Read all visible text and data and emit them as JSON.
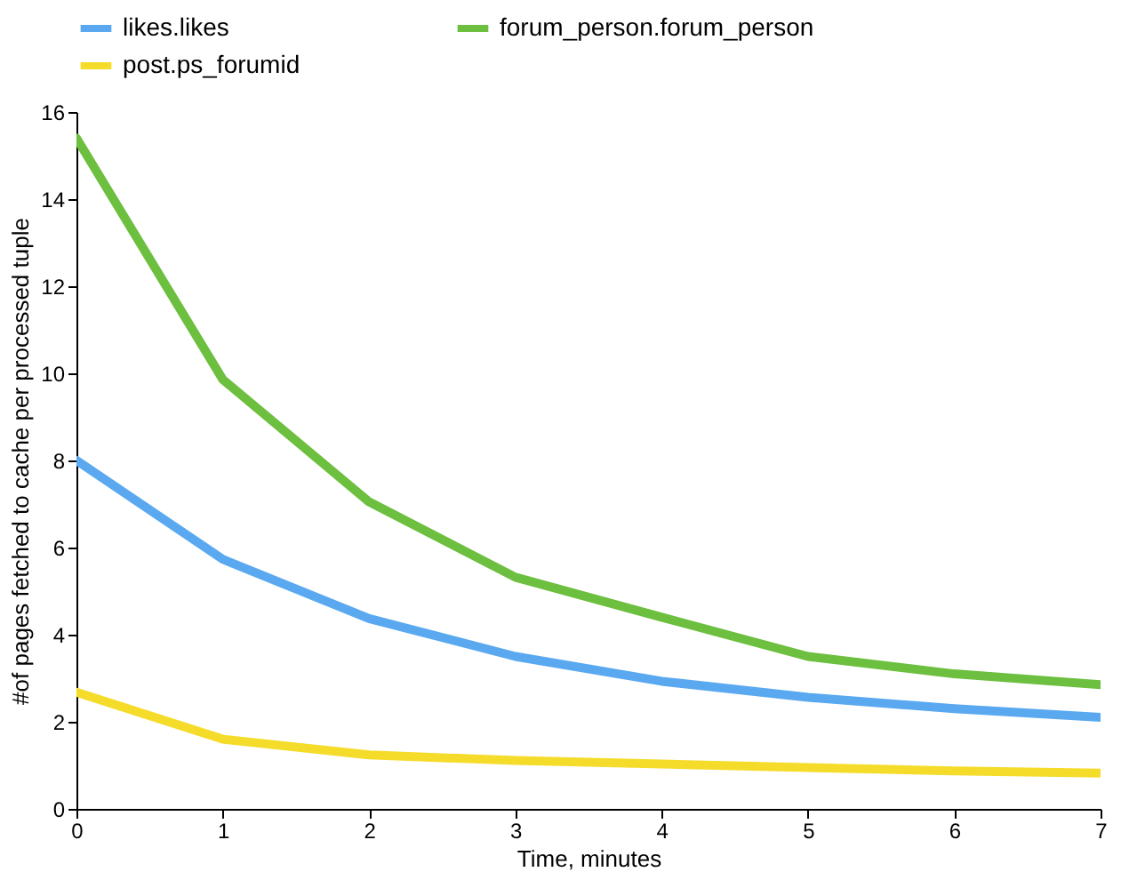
{
  "chart_data": {
    "type": "line",
    "xlabel": "Time, minutes",
    "ylabel": "#of pages fetched to cache per processed tuple",
    "x": [
      0,
      1,
      2,
      3,
      4,
      5,
      6,
      7
    ],
    "series": [
      {
        "name": "likes.likes",
        "color": "#5aa9f0",
        "values": [
          8.0,
          5.73,
          4.37,
          3.5,
          2.93,
          2.56,
          2.3,
          2.1
        ]
      },
      {
        "name": "forum_person.forum_person",
        "color": "#6cbf3f",
        "values": [
          15.4,
          9.86,
          7.05,
          5.32,
          4.4,
          3.5,
          3.1,
          2.85
        ]
      },
      {
        "name": "post.ps_forumid",
        "color": "#f5dc2a",
        "values": [
          2.68,
          1.6,
          1.24,
          1.11,
          1.03,
          0.95,
          0.87,
          0.82
        ]
      }
    ],
    "xlim": [
      0,
      7
    ],
    "xticks": [
      0,
      1,
      2,
      3,
      4,
      5,
      6,
      7
    ],
    "ylim": [
      0,
      16
    ],
    "yticks": [
      0,
      2,
      4,
      6,
      8,
      10,
      12,
      14,
      16
    ],
    "grid": false,
    "legend": "top",
    "marker": "none",
    "line_style": "solid"
  }
}
